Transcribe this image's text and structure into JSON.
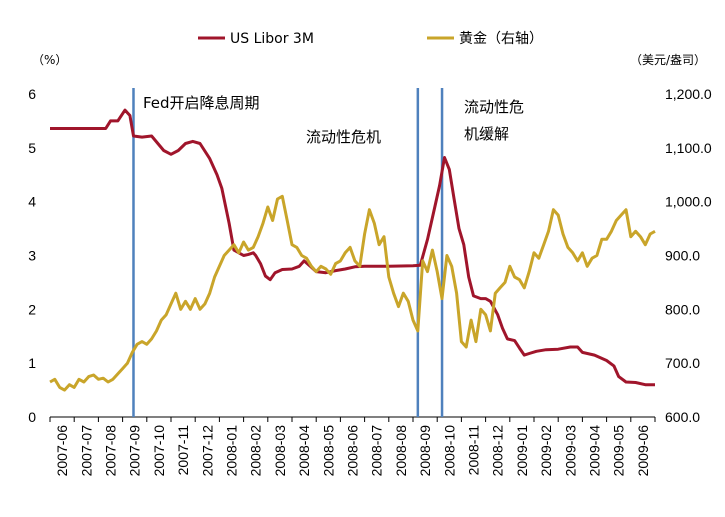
{
  "chart_data": {
    "type": "line",
    "title": "",
    "x_dates": [
      "2007-06",
      "2007-07",
      "2007-08",
      "2007-09",
      "2007-10",
      "2007-11",
      "2007-12",
      "2008-01",
      "2008-02",
      "2008-03",
      "2008-04",
      "2008-05",
      "2008-06",
      "2008-07",
      "2008-08",
      "2008-09",
      "2008-10",
      "2008-11",
      "2008-12",
      "2009-01",
      "2009-02",
      "2009-03",
      "2009-04",
      "2009-05",
      "2009-06"
    ],
    "x_range": [
      0,
      25
    ],
    "left_axis": {
      "unit": "（%）",
      "min": 0,
      "max": 6,
      "ticks": [
        "0",
        "1",
        "2",
        "3",
        "4",
        "5",
        "6"
      ]
    },
    "right_axis": {
      "unit": "（美元/盎司）",
      "min": 600,
      "max": 1200,
      "ticks": [
        "600.0",
        "700.0",
        "800.0",
        "900.0",
        "1,000.0",
        "1,100.0",
        "1,200.0"
      ]
    },
    "legend_position": "top",
    "series": [
      {
        "name": "US Libor 3M",
        "axis": "left",
        "color": "#A0152B",
        "points": [
          [
            0,
            5.36
          ],
          [
            2.3,
            5.36
          ],
          [
            2.5,
            5.5
          ],
          [
            2.8,
            5.5
          ],
          [
            3.1,
            5.7
          ],
          [
            3.3,
            5.6
          ],
          [
            3.45,
            5.22
          ],
          [
            3.8,
            5.2
          ],
          [
            4.2,
            5.22
          ],
          [
            4.7,
            4.95
          ],
          [
            5.0,
            4.88
          ],
          [
            5.3,
            4.95
          ],
          [
            5.6,
            5.08
          ],
          [
            5.9,
            5.12
          ],
          [
            6.2,
            5.08
          ],
          [
            6.6,
            4.8
          ],
          [
            6.9,
            4.5
          ],
          [
            7.1,
            4.25
          ],
          [
            7.4,
            3.6
          ],
          [
            7.6,
            3.1
          ],
          [
            7.8,
            3.05
          ],
          [
            8.0,
            3.0
          ],
          [
            8.2,
            3.02
          ],
          [
            8.4,
            3.05
          ],
          [
            8.5,
            3.0
          ],
          [
            8.7,
            2.85
          ],
          [
            8.9,
            2.62
          ],
          [
            9.1,
            2.55
          ],
          [
            9.3,
            2.68
          ],
          [
            9.6,
            2.74
          ],
          [
            10.0,
            2.75
          ],
          [
            10.3,
            2.8
          ],
          [
            10.5,
            2.9
          ],
          [
            10.8,
            2.78
          ],
          [
            11.0,
            2.7
          ],
          [
            11.4,
            2.68
          ],
          [
            11.8,
            2.72
          ],
          [
            12.2,
            2.75
          ],
          [
            12.6,
            2.79
          ],
          [
            13.0,
            2.8
          ],
          [
            14.0,
            2.8
          ],
          [
            15.0,
            2.81
          ],
          [
            15.3,
            2.82
          ],
          [
            15.6,
            3.3
          ],
          [
            15.9,
            3.9
          ],
          [
            16.1,
            4.3
          ],
          [
            16.3,
            4.82
          ],
          [
            16.5,
            4.6
          ],
          [
            16.7,
            4.05
          ],
          [
            16.9,
            3.5
          ],
          [
            17.1,
            3.2
          ],
          [
            17.3,
            2.6
          ],
          [
            17.5,
            2.25
          ],
          [
            17.8,
            2.2
          ],
          [
            18.0,
            2.2
          ],
          [
            18.2,
            2.15
          ],
          [
            18.5,
            1.9
          ],
          [
            18.7,
            1.65
          ],
          [
            18.9,
            1.45
          ],
          [
            19.2,
            1.42
          ],
          [
            19.4,
            1.28
          ],
          [
            19.6,
            1.15
          ],
          [
            19.8,
            1.18
          ],
          [
            20.1,
            1.22
          ],
          [
            20.5,
            1.25
          ],
          [
            21.0,
            1.26
          ],
          [
            21.5,
            1.3
          ],
          [
            21.8,
            1.3
          ],
          [
            22.0,
            1.2
          ],
          [
            22.5,
            1.15
          ],
          [
            23.0,
            1.05
          ],
          [
            23.3,
            0.95
          ],
          [
            23.5,
            0.75
          ],
          [
            23.8,
            0.65
          ],
          [
            24.2,
            0.64
          ],
          [
            24.6,
            0.6
          ],
          [
            25.0,
            0.6
          ]
        ]
      },
      {
        "name": "黄金（右轴）",
        "axis": "right",
        "color": "#C9A52A",
        "points": [
          [
            0,
            665
          ],
          [
            0.2,
            670
          ],
          [
            0.4,
            655
          ],
          [
            0.6,
            650
          ],
          [
            0.8,
            660
          ],
          [
            1.0,
            655
          ],
          [
            1.2,
            670
          ],
          [
            1.4,
            665
          ],
          [
            1.6,
            675
          ],
          [
            1.8,
            678
          ],
          [
            2.0,
            670
          ],
          [
            2.2,
            672
          ],
          [
            2.4,
            665
          ],
          [
            2.6,
            670
          ],
          [
            2.8,
            680
          ],
          [
            3.0,
            690
          ],
          [
            3.2,
            700
          ],
          [
            3.4,
            720
          ],
          [
            3.6,
            735
          ],
          [
            3.8,
            740
          ],
          [
            4.0,
            735
          ],
          [
            4.2,
            745
          ],
          [
            4.4,
            760
          ],
          [
            4.6,
            780
          ],
          [
            4.8,
            790
          ],
          [
            5.0,
            810
          ],
          [
            5.2,
            830
          ],
          [
            5.4,
            800
          ],
          [
            5.6,
            815
          ],
          [
            5.8,
            800
          ],
          [
            6.0,
            820
          ],
          [
            6.2,
            800
          ],
          [
            6.4,
            810
          ],
          [
            6.6,
            830
          ],
          [
            6.8,
            860
          ],
          [
            7.0,
            880
          ],
          [
            7.2,
            900
          ],
          [
            7.4,
            910
          ],
          [
            7.6,
            920
          ],
          [
            7.8,
            905
          ],
          [
            8.0,
            925
          ],
          [
            8.2,
            910
          ],
          [
            8.4,
            915
          ],
          [
            8.6,
            935
          ],
          [
            8.8,
            960
          ],
          [
            9.0,
            990
          ],
          [
            9.2,
            965
          ],
          [
            9.4,
            1005
          ],
          [
            9.6,
            1010
          ],
          [
            9.8,
            965
          ],
          [
            10.0,
            920
          ],
          [
            10.2,
            915
          ],
          [
            10.4,
            900
          ],
          [
            10.6,
            895
          ],
          [
            10.8,
            880
          ],
          [
            11.0,
            870
          ],
          [
            11.2,
            880
          ],
          [
            11.4,
            875
          ],
          [
            11.6,
            865
          ],
          [
            11.8,
            885
          ],
          [
            12.0,
            890
          ],
          [
            12.2,
            905
          ],
          [
            12.4,
            915
          ],
          [
            12.6,
            890
          ],
          [
            12.8,
            880
          ],
          [
            13.0,
            940
          ],
          [
            13.2,
            985
          ],
          [
            13.4,
            960
          ],
          [
            13.6,
            920
          ],
          [
            13.8,
            935
          ],
          [
            14.0,
            860
          ],
          [
            14.2,
            830
          ],
          [
            14.4,
            805
          ],
          [
            14.6,
            830
          ],
          [
            14.8,
            815
          ],
          [
            15.0,
            780
          ],
          [
            15.2,
            760
          ],
          [
            15.4,
            890
          ],
          [
            15.6,
            870
          ],
          [
            15.8,
            910
          ],
          [
            16.0,
            870
          ],
          [
            16.2,
            820
          ],
          [
            16.4,
            900
          ],
          [
            16.6,
            880
          ],
          [
            16.8,
            830
          ],
          [
            17.0,
            740
          ],
          [
            17.2,
            730
          ],
          [
            17.4,
            780
          ],
          [
            17.6,
            740
          ],
          [
            17.8,
            800
          ],
          [
            18.0,
            790
          ],
          [
            18.2,
            760
          ],
          [
            18.4,
            830
          ],
          [
            18.6,
            840
          ],
          [
            18.8,
            850
          ],
          [
            19.0,
            880
          ],
          [
            19.2,
            860
          ],
          [
            19.4,
            855
          ],
          [
            19.6,
            840
          ],
          [
            19.8,
            870
          ],
          [
            20.0,
            905
          ],
          [
            20.2,
            895
          ],
          [
            20.4,
            920
          ],
          [
            20.6,
            945
          ],
          [
            20.8,
            985
          ],
          [
            21.0,
            975
          ],
          [
            21.2,
            940
          ],
          [
            21.4,
            915
          ],
          [
            21.6,
            905
          ],
          [
            21.8,
            890
          ],
          [
            22.0,
            905
          ],
          [
            22.2,
            880
          ],
          [
            22.4,
            895
          ],
          [
            22.6,
            900
          ],
          [
            22.8,
            930
          ],
          [
            23.0,
            930
          ],
          [
            23.2,
            945
          ],
          [
            23.4,
            965
          ],
          [
            23.6,
            975
          ],
          [
            23.8,
            985
          ],
          [
            24.0,
            935
          ],
          [
            24.2,
            945
          ],
          [
            24.4,
            935
          ],
          [
            24.6,
            920
          ],
          [
            24.8,
            940
          ],
          [
            25.0,
            945
          ]
        ]
      }
    ],
    "vertical_lines": [
      3.45,
      15.2,
      16.2
    ],
    "line_color": "#4F81BD",
    "annotations": [
      "Fed开启降息周期",
      "流动性危机",
      "流动性危\n机缓解"
    ]
  },
  "legend": {
    "libor_label": "US Libor 3M",
    "gold_label": "黄金（右轴）"
  },
  "axes": {
    "left_unit": "（%）",
    "right_unit": "（美元/盎司）"
  },
  "annotations": {
    "fed": "Fed开启降息周期",
    "crisis": "流动性危机",
    "relief_line1": "流动性危",
    "relief_line2": "机缓解"
  }
}
